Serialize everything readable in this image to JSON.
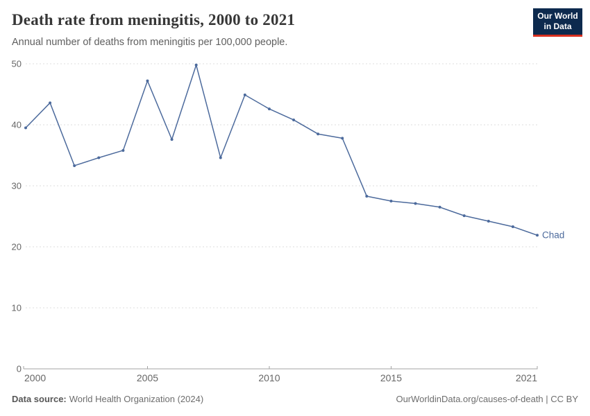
{
  "header": {
    "title": "Death rate from meningitis, 2000 to 2021",
    "subtitle": "Annual number of deaths from meningitis per 100,000 people.",
    "logo": {
      "line1": "Our World",
      "line2": "in Data",
      "bg_color": "#0d2a4e",
      "accent_color": "#d8301f"
    }
  },
  "chart_data": {
    "type": "line",
    "title": "Death rate from meningitis, 2000 to 2021",
    "subtitle": "Annual number of deaths from meningitis per 100,000 people.",
    "x": [
      2000,
      2001,
      2002,
      2003,
      2004,
      2005,
      2006,
      2007,
      2008,
      2009,
      2010,
      2011,
      2012,
      2013,
      2014,
      2015,
      2016,
      2017,
      2018,
      2019,
      2020,
      2021
    ],
    "series": [
      {
        "name": "Chad",
        "color": "#4C6A9C",
        "values": [
          39.5,
          43.6,
          33.3,
          34.6,
          35.8,
          47.2,
          37.6,
          49.8,
          34.6,
          44.9,
          42.6,
          40.8,
          38.5,
          37.8,
          28.3,
          27.5,
          27.1,
          26.5,
          25.1,
          24.2,
          23.3,
          21.9
        ]
      }
    ],
    "xlabel": "",
    "ylabel": "",
    "ylim": [
      0,
      50
    ],
    "xlim": [
      2000,
      2021
    ],
    "yticks": [
      0,
      10,
      20,
      30,
      40,
      50
    ],
    "xticks": [
      2000,
      2005,
      2010,
      2015,
      2021
    ],
    "grid": "horizontal-dashed",
    "legend_position": "end-of-line-label"
  },
  "colors": {
    "line": "#4C6A9C",
    "gridline": "#dcdcdc",
    "axis": "#a3a3a3",
    "tick_label": "#666666"
  },
  "footer": {
    "source_label": "Data source:",
    "source_value": "World Health Organization (2024)",
    "attribution": "OurWorldinData.org/causes-of-death | CC BY"
  }
}
